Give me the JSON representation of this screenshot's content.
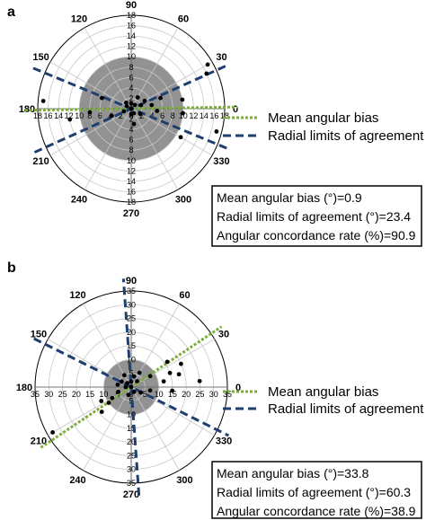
{
  "chart_data": [
    {
      "panel": "a",
      "type": "scatter",
      "coordinate_system": "polar",
      "angle_ticks": [
        "90",
        "60",
        "30",
        "0",
        "330",
        "300",
        "270",
        "240",
        "210",
        "180",
        "150",
        "120"
      ],
      "radial_max": 18,
      "radial_ticks": [
        "18",
        "16",
        "14",
        "12",
        "10",
        "8",
        "6",
        "4",
        "2",
        "0",
        "2",
        "4",
        "6",
        "8",
        "10",
        "12",
        "14",
        "16",
        "18"
      ],
      "vertical_ticks": [
        "18",
        "16",
        "14",
        "12",
        "10",
        "8",
        "6",
        "4",
        "2",
        "0",
        "2",
        "4",
        "6",
        "8",
        "10",
        "12",
        "14",
        "16",
        "18"
      ],
      "shaded_radius": 10,
      "mean_angular_bias": 0.9,
      "radial_limits_of_agreement": 23.4,
      "angular_concordance_rate": 90.9,
      "legend": [
        "Mean angular bias",
        "Radial limits of agreement"
      ],
      "stats": [
        "Mean angular bias (°)=0.9",
        "Radial limits of agreement (°)=23.4",
        "Angular concordance rate (%)=90.9"
      ],
      "points": [
        {
          "angle": 0,
          "r": 0
        },
        {
          "angle": 90,
          "r": 1
        },
        {
          "angle": 45,
          "r": 1
        },
        {
          "angle": 20,
          "r": 2
        },
        {
          "angle": 300,
          "r": 1
        },
        {
          "angle": 200,
          "r": 1.5
        },
        {
          "angle": 270,
          "r": 1
        },
        {
          "angle": 150,
          "r": 1
        },
        {
          "angle": 330,
          "r": 2
        },
        {
          "angle": 30,
          "r": 3
        },
        {
          "angle": 60,
          "r": 2.5
        },
        {
          "angle": 10,
          "r": 4
        },
        {
          "angle": 355,
          "r": 5
        },
        {
          "angle": 200,
          "r": 4
        },
        {
          "angle": 185,
          "r": 8
        },
        {
          "angle": 160,
          "r": 6
        },
        {
          "angle": 190,
          "r": 12
        },
        {
          "angle": 175,
          "r": 17
        },
        {
          "angle": 20,
          "r": 6
        },
        {
          "angle": 10,
          "r": 10
        },
        {
          "angle": 355,
          "r": 10
        },
        {
          "angle": 330,
          "r": 11
        },
        {
          "angle": 345,
          "r": 17
        },
        {
          "angle": 30,
          "r": 17
        },
        {
          "angle": 25,
          "r": 16
        },
        {
          "angle": 130,
          "r": 1.5
        },
        {
          "angle": 280,
          "r": 3
        }
      ]
    },
    {
      "panel": "b",
      "type": "scatter",
      "coordinate_system": "polar",
      "angle_ticks": [
        "90",
        "60",
        "30",
        "0",
        "330",
        "300",
        "270",
        "240",
        "210",
        "180",
        "150",
        "120"
      ],
      "radial_max": 35,
      "radial_ticks": [
        "35",
        "30",
        "25",
        "20",
        "15",
        "10",
        "5",
        "0",
        "5",
        "10",
        "15",
        "20",
        "25",
        "30",
        "35"
      ],
      "vertical_ticks": [
        "35",
        "30",
        "25",
        "20",
        "15",
        "10",
        "5",
        "0",
        "5",
        "10",
        "15",
        "20",
        "25",
        "30",
        "35"
      ],
      "shaded_radius": 10,
      "mean_angular_bias": 33.8,
      "radial_limits_of_agreement": 60.3,
      "angular_concordance_rate": 38.9,
      "legend": [
        "Mean angular bias",
        "Radial limits of agreement"
      ],
      "stats": [
        "Mean angular bias (°)=33.8",
        "Radial limits of agreement (°)=60.3",
        "Angular concordance rate (%)=38.9"
      ],
      "points": [
        {
          "angle": 0,
          "r": 0
        },
        {
          "angle": 90,
          "r": 2
        },
        {
          "angle": 45,
          "r": 3
        },
        {
          "angle": 30,
          "r": 8
        },
        {
          "angle": 20,
          "r": 15
        },
        {
          "angle": 25,
          "r": 20
        },
        {
          "angle": 35,
          "r": 16
        },
        {
          "angle": 15,
          "r": 18
        },
        {
          "angle": 5,
          "r": 25
        },
        {
          "angle": 10,
          "r": 12
        },
        {
          "angle": 60,
          "r": 6
        },
        {
          "angle": 120,
          "r": 5
        },
        {
          "angle": 150,
          "r": 4
        },
        {
          "angle": 170,
          "r": 5
        },
        {
          "angle": 200,
          "r": 5
        },
        {
          "angle": 210,
          "r": 8
        },
        {
          "angle": 215,
          "r": 10
        },
        {
          "angle": 205,
          "r": 12
        },
        {
          "angle": 220,
          "r": 14
        },
        {
          "angle": 210,
          "r": 33
        },
        {
          "angle": 250,
          "r": 3
        },
        {
          "angle": 300,
          "r": 2
        },
        {
          "angle": 330,
          "r": 4
        },
        {
          "angle": 350,
          "r": 7
        },
        {
          "angle": 355,
          "r": 15
        },
        {
          "angle": 180,
          "r": 2
        },
        {
          "angle": 135,
          "r": 2
        },
        {
          "angle": 75,
          "r": 4
        }
      ]
    }
  ],
  "colors": {
    "grid": "#c8c8c8",
    "shade": "#8c8c8c",
    "mean_line": "#7dae3c",
    "limits_line": "#1f3f6e",
    "points": "#000000"
  }
}
